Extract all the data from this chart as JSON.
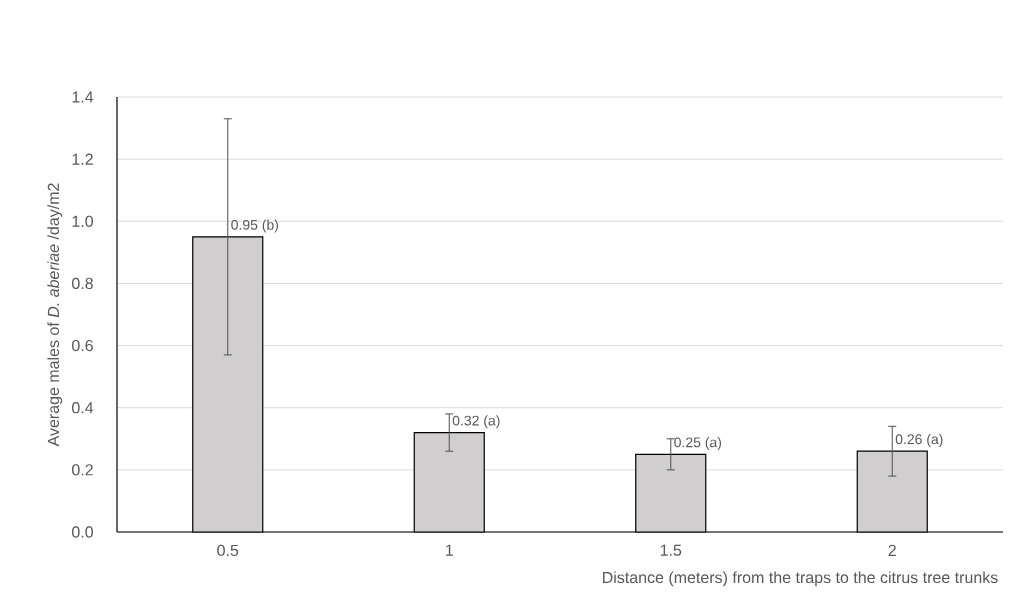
{
  "chart_data": {
    "type": "bar",
    "xlabel": "Distance (meters) from the traps to the citrus tree trunks",
    "ylabel": "Average males of *D. aberiae* /day/m2",
    "categories": [
      "0.5",
      "1",
      "1.5",
      "2"
    ],
    "values": [
      0.95,
      0.32,
      0.25,
      0.26
    ],
    "errors": [
      0.38,
      0.06,
      0.05,
      0.08
    ],
    "value_labels": [
      "0.95 (b)",
      "0.32 (a)",
      "0.25 (a)",
      "0.26 (a)"
    ],
    "color": "#d0cece",
    "ylim": [
      0,
      1.4
    ],
    "yticks": [
      {
        "value": 0,
        "label": "0.0"
      },
      0.2,
      0.4,
      0.6,
      0.8,
      {
        "value": 1,
        "label": "1.0"
      },
      1.2,
      1.4
    ],
    "grid": "y"
  }
}
